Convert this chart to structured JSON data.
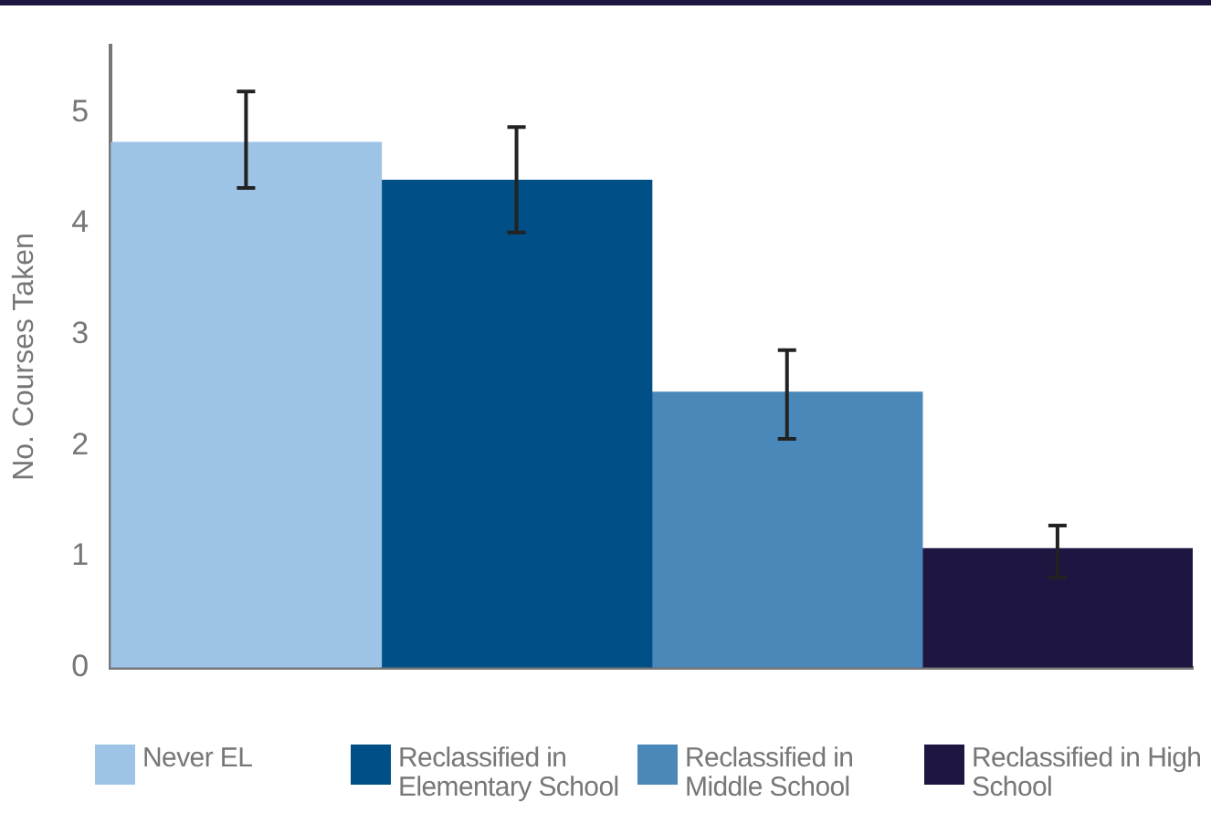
{
  "chart_data": {
    "type": "bar",
    "ylabel": "No. Courses Taken",
    "categories": [
      null
    ],
    "series": [
      {
        "name": "Never EL",
        "color": "#9dc3e6",
        "values": [
          4.73
        ],
        "errors": [
          [
            4.32,
            5.19
          ]
        ]
      },
      {
        "name": "Reclassified in Elementary School",
        "color": "#004f86",
        "values": [
          4.39
        ],
        "errors": [
          [
            3.92,
            4.87
          ]
        ]
      },
      {
        "name": "Reclassified in Middle School",
        "color": "#4a88b9",
        "values": [
          2.48
        ],
        "errors": [
          [
            2.06,
            2.86
          ]
        ]
      },
      {
        "name": "Reclassified in High School",
        "color": "#1e1540",
        "values": [
          1.07
        ],
        "errors": [
          [
            0.81,
            1.28
          ]
        ]
      }
    ],
    "ylim": [
      0,
      5.6
    ],
    "yticks": [
      0,
      1,
      2,
      3,
      4,
      5
    ],
    "grid": false,
    "legend": "bottom"
  }
}
